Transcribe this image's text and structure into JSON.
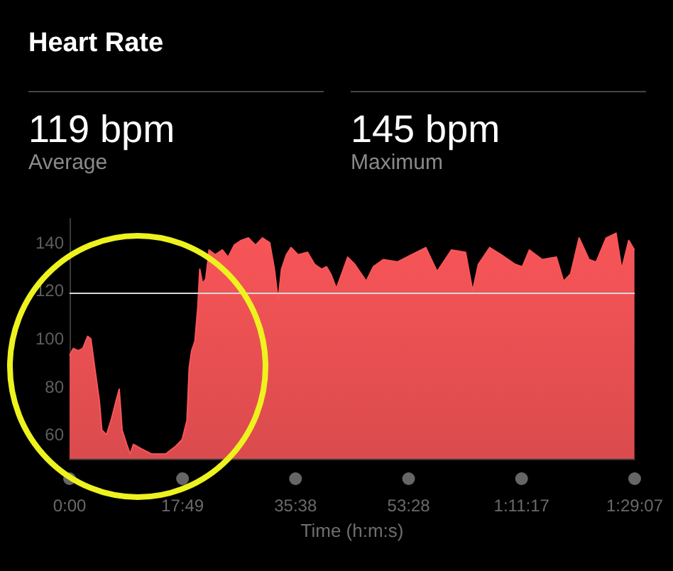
{
  "chart_data": {
    "type": "area",
    "title": "Heart Rate",
    "xlabel": "Time (h:m:s)",
    "annotations": [
      "119 bpm",
      "Average",
      "145 bpm",
      "Maximum"
    ],
    "x": [
      0,
      36,
      81,
      125,
      171,
      201,
      238,
      282,
      305,
      349,
      393,
      439,
      470,
      497,
      541,
      573,
      604,
      685,
      775,
      909,
      998,
      1065,
      1111,
      1132,
      1155,
      1186,
      1213,
      1232,
      1258,
      1289,
      1320,
      1379,
      1446,
      1500,
      1558,
      1625,
      1692,
      1759,
      1826,
      1894,
      1938,
      1974,
      2005,
      2051,
      2095,
      2162,
      2252,
      2319,
      2386,
      2431,
      2471,
      2525,
      2632,
      2699,
      2807,
      2874,
      2968,
      3102,
      3237,
      3371,
      3478,
      3613,
      3747,
      3814,
      3868,
      3975,
      4083,
      4217,
      4284,
      4351,
      4472,
      4606,
      4674,
      4741,
      4821,
      4915,
      4983,
      5077,
      5171,
      5224,
      5291,
      5345
    ],
    "series": [
      {
        "color": "#f85558",
        "values": [
          93,
          96,
          95,
          96,
          101,
          100,
          88,
          74,
          62,
          60,
          66,
          74,
          79,
          62,
          56,
          52,
          56,
          54,
          52,
          52,
          55,
          58,
          66,
          88,
          95,
          99,
          113,
          129,
          123,
          125,
          137,
          135,
          137,
          134,
          139,
          141,
          142,
          139,
          142,
          140,
          129,
          116,
          129,
          135,
          138,
          135,
          136,
          131,
          129,
          130,
          127,
          121,
          134,
          131,
          124,
          130,
          133,
          132,
          135,
          138,
          128,
          137,
          136,
          120,
          131,
          138,
          135,
          131,
          130,
          137,
          133,
          134,
          124,
          127,
          142,
          133,
          132,
          142,
          144,
          129,
          141,
          137
        ]
      }
    ],
    "xlim": [
      0,
      5347
    ],
    "ylim": [
      50,
      150
    ],
    "xticks": [
      {
        "value": 0,
        "label": "0:00"
      },
      {
        "value": 1069,
        "label": "17:49"
      },
      {
        "value": 2138,
        "label": "35:38"
      },
      {
        "value": 3208,
        "label": "53:28"
      },
      {
        "value": 4277,
        "label": "1:11:17"
      },
      {
        "value": 5347,
        "label": "1:29:07"
      }
    ],
    "yticks": [
      60,
      80,
      100,
      120,
      140
    ],
    "ref_lines": [
      {
        "axis": "y",
        "value": 119,
        "label": null,
        "color": "#d8d8d8"
      }
    ],
    "grid": false,
    "marker": "none"
  }
}
